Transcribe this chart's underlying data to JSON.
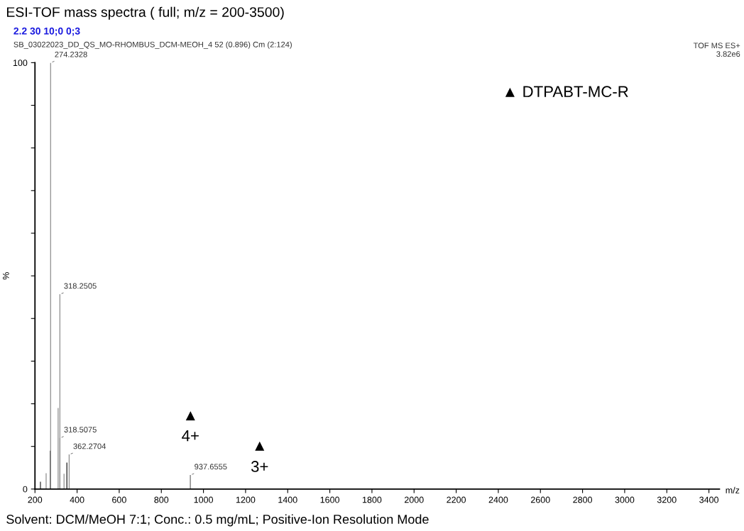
{
  "chart_data": {
    "type": "bar",
    "title": "ESI-TOF mass spectra ( full; m/z = 200-3500)",
    "xlabel": "m/z",
    "ylabel": "%",
    "x": [
      226,
      253,
      273.2,
      274.2328,
      310,
      318.2505,
      318.5075,
      338,
      351.5,
      362.2704,
      937.6555
    ],
    "values": [
      1.7,
      3.7,
      9,
      100,
      19,
      45.7,
      12,
      3.6,
      6.2,
      8.1,
      3.3
    ],
    "colors": [
      "#222222",
      "#888888",
      "#111111",
      "#888888",
      "#888888",
      "#888888",
      "#888888",
      "#888888",
      "#111111",
      "#888888",
      "#666666"
    ],
    "xlim": [
      200,
      3450
    ],
    "ylim": [
      0,
      100
    ],
    "xticks": [
      200,
      400,
      600,
      800,
      1000,
      1200,
      1400,
      1600,
      1800,
      2000,
      2200,
      2400,
      2600,
      2800,
      3000,
      3200,
      3400
    ],
    "yticks": [
      0,
      {
        "value": 10,
        "label": null
      },
      {
        "value": 20,
        "label": null
      },
      {
        "value": 30,
        "label": null
      },
      {
        "value": 40,
        "label": null
      },
      {
        "value": 50,
        "label": null
      },
      {
        "value": 60,
        "label": null
      },
      {
        "value": 70,
        "label": null
      },
      {
        "value": 80,
        "label": null
      },
      {
        "value": 90,
        "label": null
      },
      100
    ],
    "grid": false,
    "annotations": [
      "2.2 30 10;0 0;3",
      "SB_03022023_DD_QS_MO-RHOMBUS_DCM-MEOH_4 52 (0.896) Cm (2:124)",
      "TOF MS ES+\n3.82e6",
      "▲ DTPABT-MC-R",
      "Solvent: DCM/MeOH 7:1; Conc.: 0.5 mg/mL; Positive-Ion Resolution Mode",
      "▲",
      "4+",
      "▲",
      "3+",
      {
        "text": "274.2328",
        "x": 274.2328,
        "y": 100
      },
      {
        "text": "318.2505",
        "x": 318.2505,
        "y": 45.7
      },
      {
        "text": "318.5075",
        "x": 318.5075,
        "y": 12
      },
      {
        "text": "362.2704",
        "x": 362.2704,
        "y": 8.1
      },
      {
        "text": "937.6555",
        "x": 937.6555,
        "y": 3.3
      }
    ]
  }
}
